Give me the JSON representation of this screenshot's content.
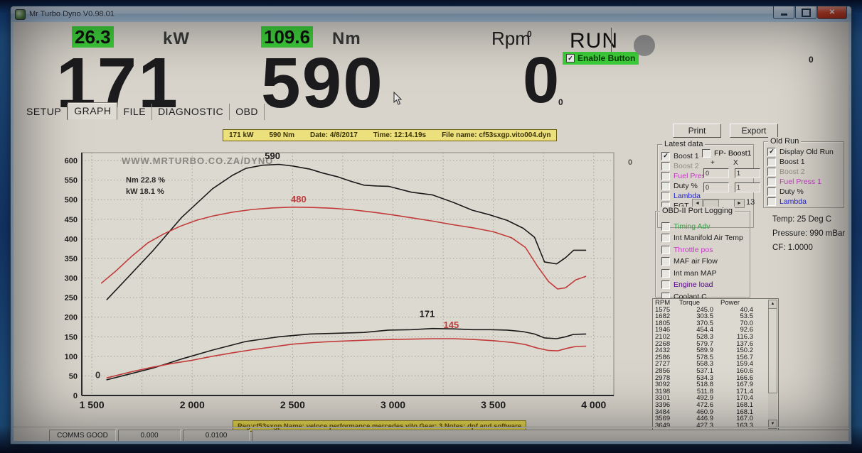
{
  "window": {
    "title": "Mr Turbo Dyno V0.98.01"
  },
  "icons": {
    "check": "✓",
    "close": "✕",
    "scroll_left": "◄",
    "scroll_right": "►",
    "scroll_up": "▲",
    "scroll_down": "▼"
  },
  "colors": {
    "highlight_green": "#3ed13a",
    "curve_black": "#1a1a1a",
    "curve_red": "#c23b3b",
    "lambda_blue": "#2222cc",
    "fuel_press_magenta": "#c23bc2",
    "timing_green": "#3aa04a",
    "engine_load_purple": "#550088",
    "disabled_gray": "#8f8d85",
    "info_yellow": "#ece07c"
  },
  "readouts": {
    "power": {
      "live": "26.3",
      "unit": "kW",
      "peak": "171"
    },
    "torque": {
      "live": "109.6",
      "unit": "Nm",
      "peak": "590"
    },
    "rpm": {
      "label": "Rpm",
      "small_top": "0",
      "value": "0",
      "small_bottom": "0"
    },
    "run_label": "RUN",
    "enable_button": {
      "label": "Enable Button",
      "checked": true
    },
    "far_right_zero": "0"
  },
  "tabs": [
    {
      "label": "SETUP",
      "active": false
    },
    {
      "label": "GRAPH",
      "active": true
    },
    {
      "label": "FILE",
      "active": false
    },
    {
      "label": "DIAGNOSTIC",
      "active": false
    },
    {
      "label": "OBD",
      "active": false
    }
  ],
  "chart_infobar": {
    "kw": "171 kW",
    "nm": "590 Nm",
    "date": "Date: 4/8/2017",
    "time": "Time: 12:14.19s",
    "file": "File name: cf53sxgp.vito004.dyn"
  },
  "reg_bar": {
    "text": "Reg:cf53sxgp  Name: veloce performance   mercedes vito  Gear: 3  Notes: dpf and software"
  },
  "misc": {
    "right_of_chart_zero": "0"
  },
  "chart_data": {
    "type": "line",
    "watermark": "WWW.MRTURBO.CO.ZA/DYNO",
    "smoothing_labels": [
      "Nm 22.8 %",
      "kW 18.1 %"
    ],
    "xlabel": "RPM",
    "ylabel": "",
    "xlim": [
      1450,
      4100
    ],
    "ylim": [
      0,
      620
    ],
    "x_ticks": [
      1500,
      2000,
      2500,
      3000,
      3500,
      4000
    ],
    "x_tick_labels": [
      "1 500",
      "2 000",
      "2 500",
      "3 000",
      "3 500",
      "4 000"
    ],
    "y_tick_step": 50,
    "grid": true,
    "grid_x_step": 250,
    "series": [
      {
        "name": "torque-new-run-Nm",
        "color": "#1a1a1a",
        "points": [
          [
            1575,
            245
          ],
          [
            1682,
            303
          ],
          [
            1805,
            370
          ],
          [
            1946,
            454
          ],
          [
            2102,
            528
          ],
          [
            2200,
            562
          ],
          [
            2268,
            580
          ],
          [
            2350,
            588
          ],
          [
            2432,
            590
          ],
          [
            2500,
            586
          ],
          [
            2586,
            578
          ],
          [
            2650,
            568
          ],
          [
            2727,
            558
          ],
          [
            2790,
            547
          ],
          [
            2856,
            537
          ],
          [
            2920,
            535
          ],
          [
            2978,
            534
          ],
          [
            3092,
            519
          ],
          [
            3198,
            512
          ],
          [
            3301,
            493
          ],
          [
            3396,
            473
          ],
          [
            3484,
            461
          ],
          [
            3569,
            447
          ],
          [
            3649,
            427
          ],
          [
            3705,
            404
          ],
          [
            3755,
            341
          ],
          [
            3815,
            336
          ],
          [
            3860,
            352
          ],
          [
            3900,
            371
          ],
          [
            3960,
            371
          ]
        ]
      },
      {
        "name": "torque-old-run-Nm",
        "color": "#c23b3b",
        "points": [
          [
            1548,
            287
          ],
          [
            1620,
            318
          ],
          [
            1700,
            356
          ],
          [
            1780,
            390
          ],
          [
            1860,
            413
          ],
          [
            1940,
            432
          ],
          [
            2020,
            447
          ],
          [
            2100,
            458
          ],
          [
            2200,
            468
          ],
          [
            2300,
            475
          ],
          [
            2400,
            479
          ],
          [
            2500,
            481
          ],
          [
            2600,
            480
          ],
          [
            2700,
            478
          ],
          [
            2800,
            474
          ],
          [
            2900,
            468
          ],
          [
            3000,
            461
          ],
          [
            3100,
            453
          ],
          [
            3200,
            445
          ],
          [
            3300,
            436
          ],
          [
            3400,
            428
          ],
          [
            3500,
            418
          ],
          [
            3590,
            403
          ],
          [
            3660,
            378
          ],
          [
            3720,
            330
          ],
          [
            3775,
            291
          ],
          [
            3820,
            272
          ],
          [
            3860,
            275
          ],
          [
            3910,
            295
          ],
          [
            3960,
            304
          ]
        ]
      },
      {
        "name": "power-new-run-kW",
        "color": "#1a1a1a",
        "points": [
          [
            1575,
            40
          ],
          [
            1682,
            54
          ],
          [
            1805,
            70
          ],
          [
            1946,
            93
          ],
          [
            2102,
            116
          ],
          [
            2268,
            138
          ],
          [
            2432,
            150
          ],
          [
            2586,
            157
          ],
          [
            2727,
            159
          ],
          [
            2856,
            161
          ],
          [
            2978,
            167
          ],
          [
            3092,
            168
          ],
          [
            3198,
            171
          ],
          [
            3301,
            170
          ],
          [
            3396,
            168
          ],
          [
            3484,
            168
          ],
          [
            3569,
            167
          ],
          [
            3649,
            163
          ],
          [
            3705,
            157
          ],
          [
            3755,
            147
          ],
          [
            3815,
            145
          ],
          [
            3860,
            150
          ],
          [
            3900,
            156
          ],
          [
            3960,
            157
          ]
        ]
      },
      {
        "name": "power-old-run-kW",
        "color": "#c23b3b",
        "points": [
          [
            1575,
            45
          ],
          [
            1700,
            61
          ],
          [
            1800,
            72
          ],
          [
            1900,
            82
          ],
          [
            2000,
            90
          ],
          [
            2100,
            100
          ],
          [
            2200,
            109
          ],
          [
            2300,
            117
          ],
          [
            2400,
            124
          ],
          [
            2500,
            131
          ],
          [
            2600,
            135
          ],
          [
            2700,
            138
          ],
          [
            2800,
            140
          ],
          [
            2900,
            142
          ],
          [
            3000,
            143
          ],
          [
            3100,
            144
          ],
          [
            3200,
            145
          ],
          [
            3300,
            145
          ],
          [
            3400,
            143
          ],
          [
            3500,
            140
          ],
          [
            3600,
            135
          ],
          [
            3660,
            130
          ],
          [
            3720,
            121
          ],
          [
            3775,
            115
          ],
          [
            3820,
            114
          ],
          [
            3870,
            121
          ],
          [
            3910,
            125
          ],
          [
            3960,
            126
          ]
        ]
      }
    ],
    "annotations": [
      {
        "text": "590",
        "x": 2400,
        "y": 604,
        "color": "#1a1a1a"
      },
      {
        "text": "480",
        "x": 2530,
        "y": 493,
        "color": "#c23b3b"
      },
      {
        "text": "171",
        "x": 3170,
        "y": 200,
        "color": "#1a1a1a"
      },
      {
        "text": "145",
        "x": 3290,
        "y": 172,
        "color": "#c23b3b"
      },
      {
        "text": "0",
        "x": 1530,
        "y": 44,
        "color": "#333333"
      }
    ]
  },
  "right_panel": {
    "print_label": "Print",
    "export_label": "Export",
    "latest_data": {
      "title": "Latest data",
      "items": [
        {
          "label": "Boost 1",
          "checked": true,
          "color": "#1c1c1c"
        },
        {
          "label": "Boost 2",
          "checked": false,
          "color": "#8f8d85"
        },
        {
          "label": "Fuel Press1",
          "checked": false,
          "color": "#c23bc2"
        },
        {
          "label": "Duty %",
          "checked": false,
          "color": "#1c1c1c"
        },
        {
          "label": "Lambda",
          "checked": false,
          "color": "#2222cc"
        },
        {
          "label": "EGT",
          "checked": false,
          "color": "#1c1c1c"
        }
      ],
      "fp_boost": {
        "label": "FP- Boost1",
        "checked": false
      },
      "plus_header": "+",
      "x_header": "X",
      "fields": [
        [
          "0",
          "1"
        ],
        [
          "0",
          "1"
        ]
      ],
      "scroll_value": "13"
    },
    "old_run": {
      "title": "Old Run",
      "items": [
        {
          "label": "Display Old Run",
          "checked": true,
          "color": "#1c1c1c"
        },
        {
          "label": "Boost 1",
          "checked": false,
          "color": "#1c1c1c"
        },
        {
          "label": "Boost 2",
          "checked": false,
          "color": "#8f8d85"
        },
        {
          "label": "Fuel Press 1",
          "checked": false,
          "color": "#c23bc2"
        },
        {
          "label": "Duty %",
          "checked": false,
          "color": "#1c1c1c"
        },
        {
          "label": "Lambda",
          "checked": false,
          "color": "#2222cc"
        }
      ]
    },
    "obd": {
      "title": "OBD-II Port Logging",
      "items": [
        {
          "label": "Timing Adv",
          "checked": false,
          "color": "#3aa04a"
        },
        {
          "label": "Int Manifold Air Temp",
          "checked": false,
          "color": "#1c1c1c"
        },
        {
          "label": "Throttle pos",
          "checked": false,
          "color": "#c23bc2"
        },
        {
          "label": "MAF air Flow",
          "checked": false,
          "color": "#1c1c1c"
        },
        {
          "label": "Int man MAP",
          "checked": false,
          "color": "#1c1c1c"
        },
        {
          "label": "Engine load",
          "checked": false,
          "color": "#550088"
        },
        {
          "label": "Coolant C",
          "checked": false,
          "color": "#1c1c1c"
        }
      ]
    },
    "environment": {
      "temp": "Temp: 25 Deg C",
      "pressure": "Pressure: 990 mBar",
      "cf": "CF: 1.0000"
    },
    "table": {
      "headers": [
        "RPM",
        "Torque",
        "Power"
      ],
      "rows": [
        [
          "1575",
          "245.0",
          "40.4"
        ],
        [
          "1682",
          "303.5",
          "53.5"
        ],
        [
          "1805",
          "370.5",
          "70.0"
        ],
        [
          "1946",
          "454.4",
          "92.6"
        ],
        [
          "2102",
          "528.3",
          "116.3"
        ],
        [
          "2268",
          "579.7",
          "137.6"
        ],
        [
          "2432",
          "589.9",
          "150.2"
        ],
        [
          "2586",
          "578.5",
          "156.7"
        ],
        [
          "2727",
          "558.3",
          "159.4"
        ],
        [
          "2856",
          "537.1",
          "160.6"
        ],
        [
          "2978",
          "534.3",
          "166.6"
        ],
        [
          "3092",
          "518.8",
          "167.9"
        ],
        [
          "3198",
          "511.8",
          "171.4"
        ],
        [
          "3301",
          "492.9",
          "170.4"
        ],
        [
          "3396",
          "472.6",
          "168.1"
        ],
        [
          "3484",
          "460.9",
          "168.1"
        ],
        [
          "3569",
          "446.9",
          "167.0"
        ],
        [
          "3649",
          "427.3",
          "163.3"
        ]
      ]
    }
  },
  "statusbar": {
    "panels": [
      "COMMS GOOD",
      "0.000",
      "0.0100",
      ""
    ]
  }
}
